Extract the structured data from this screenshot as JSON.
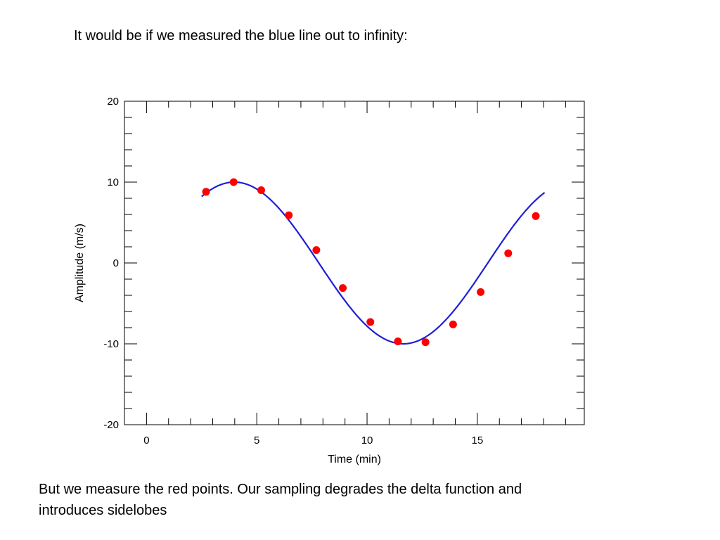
{
  "slide": {
    "title": "It would be if we measured the blue line out to infinity:",
    "caption_lines": [
      "But we measure the red points. Our sampling degrades the delta function and",
      "introduces sidelobes"
    ]
  },
  "chart_data": {
    "type": "line",
    "title": "",
    "xlabel": "Time (min)",
    "ylabel": "Amplitude (m/s)",
    "xlim": [
      -1,
      19.85
    ],
    "ylim": [
      -20,
      20
    ],
    "x_ticks": [
      0,
      5,
      10,
      15
    ],
    "y_ticks": [
      -20,
      -10,
      0,
      10,
      20
    ],
    "x_minor_step": 1,
    "y_minor_step": 2,
    "grid": false,
    "series": [
      {
        "kind": "line",
        "color": "#1f1fd6",
        "function": "10*sin(0.41*(t-0.15))",
        "x_range": [
          2.5,
          18.05
        ]
      },
      {
        "kind": "scatter",
        "color": "#ff0000",
        "points": [
          [
            2.7,
            8.8
          ],
          [
            3.95,
            10.0
          ],
          [
            5.2,
            9.0
          ],
          [
            6.45,
            5.9
          ],
          [
            7.7,
            1.6
          ],
          [
            8.9,
            -3.1
          ],
          [
            10.15,
            -7.3
          ],
          [
            11.4,
            -9.7
          ],
          [
            12.65,
            -9.8
          ],
          [
            13.9,
            -7.6
          ],
          [
            15.15,
            -3.6
          ],
          [
            16.4,
            1.2
          ],
          [
            17.65,
            5.8
          ]
        ]
      }
    ]
  }
}
